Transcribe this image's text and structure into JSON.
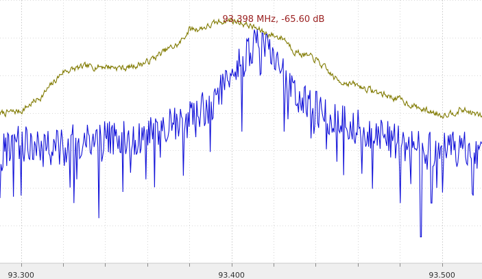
{
  "readout": {
    "frequency": "93.398 MHz",
    "level": "-65.60 dB",
    "text": "93.398 MHz, -65.60 dB",
    "color": "#9a2020"
  },
  "chart_data": {
    "type": "line",
    "title": "",
    "xlabel": "",
    "ylabel": "",
    "x_unit": "MHz",
    "xlim": [
      93.29,
      93.519
    ],
    "ylim": [
      -130,
      -60
    ],
    "grid": true,
    "legend": "none",
    "x_ticks": [
      {
        "value": 93.3,
        "label": "93.300"
      },
      {
        "value": 93.4,
        "label": "93.400"
      },
      {
        "value": 93.5,
        "label": "93.500"
      }
    ],
    "series": [
      {
        "color": "#807a00",
        "x": [
          93.29,
          93.3,
          93.31,
          93.32,
          93.33,
          93.34,
          93.35,
          93.36,
          93.37,
          93.375,
          93.38,
          93.385,
          93.39,
          93.395,
          93.4,
          93.405,
          93.41,
          93.415,
          93.42,
          93.425,
          93.43,
          93.44,
          93.45,
          93.46,
          93.47,
          93.48,
          93.49,
          93.5,
          93.51,
          93.519
        ],
        "values": [
          -90.2,
          -89.5,
          -85.5,
          -79.0,
          -77.8,
          -77.6,
          -78.1,
          -76.5,
          -73.0,
          -71.8,
          -67.8,
          -67.6,
          -66.8,
          -65.6,
          -65.4,
          -66.1,
          -67.1,
          -68.5,
          -69.5,
          -70.2,
          -73.6,
          -75.8,
          -81.3,
          -82.8,
          -84.7,
          -86.5,
          -89.0,
          -90.5,
          -89.2,
          -91.0
        ],
        "noise": 1.6
      },
      {
        "color": "#1010d8",
        "x": [
          93.29,
          93.3,
          93.31,
          93.32,
          93.33,
          93.34,
          93.35,
          93.36,
          93.37,
          93.38,
          93.39,
          93.395,
          93.4,
          93.405,
          93.41,
          93.415,
          93.42,
          93.425,
          93.43,
          93.44,
          93.45,
          93.46,
          93.47,
          93.48,
          93.49,
          93.5,
          93.51,
          93.519
        ],
        "values": [
          -101,
          -98,
          -99,
          -99,
          -97,
          -97,
          -97,
          -96,
          -94,
          -92,
          -88,
          -84,
          -79,
          -76,
          -73,
          -72,
          -74,
          -80,
          -86,
          -89,
          -92,
          -94,
          -96,
          -98,
          -99,
          -100,
          -100,
          -100
        ],
        "spread": 5,
        "dips": [
          {
            "x": 93.3,
            "y": -112
          },
          {
            "x": 93.325,
            "y": -114
          },
          {
            "x": 93.337,
            "y": -118
          },
          {
            "x": 93.405,
            "y": -95
          },
          {
            "x": 93.425,
            "y": -95
          },
          {
            "x": 93.45,
            "y": -103
          },
          {
            "x": 93.48,
            "y": -114
          },
          {
            "x": 93.49,
            "y": -123
          },
          {
            "x": 93.495,
            "y": -114
          },
          {
            "x": 93.515,
            "y": -112
          }
        ]
      }
    ]
  }
}
